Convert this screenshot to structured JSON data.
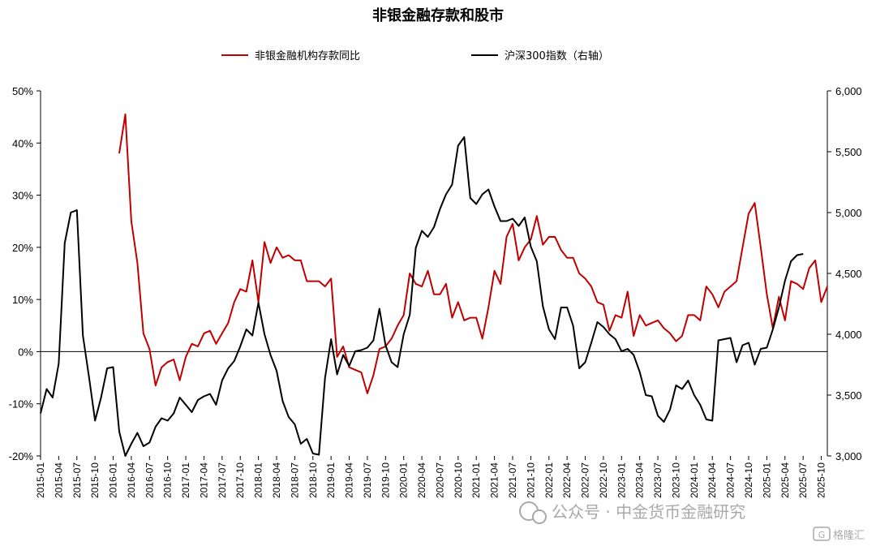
{
  "chart_data": {
    "type": "line",
    "title": "非银金融存款和股市",
    "legend_position": "top",
    "grid": false,
    "left_axis": {
      "min": -20,
      "max": 50,
      "step": 10,
      "format": "percent",
      "tick_labels": [
        "-20%",
        "-10%",
        "0%",
        "10%",
        "20%",
        "30%",
        "40%",
        "50%"
      ]
    },
    "right_axis": {
      "min": 3000,
      "max": 6000,
      "step": 500,
      "tick_labels": [
        "3,000",
        "3,500",
        "4,000",
        "4,500",
        "5,000",
        "5,500",
        "6,000"
      ]
    },
    "x_start": "2015-01",
    "x_end": "2025-11",
    "x_tick_labels": [
      "2015-01",
      "2015-04",
      "2015-07",
      "2015-10",
      "2016-01",
      "2016-04",
      "2016-07",
      "2016-10",
      "2017-01",
      "2017-04",
      "2017-07",
      "2017-10",
      "2018-01",
      "2018-04",
      "2018-07",
      "2018-10",
      "2019-01",
      "2019-04",
      "2019-07",
      "2019-10",
      "2020-01",
      "2020-04",
      "2020-07",
      "2020-10",
      "2021-01",
      "2021-04",
      "2021-07",
      "2021-10",
      "2022-01",
      "2022-04",
      "2022-07",
      "2022-10",
      "2023-01",
      "2023-04",
      "2023-07",
      "2023-10",
      "2024-01",
      "2024-04",
      "2024-07",
      "2024-10",
      "2025-01",
      "2025-04",
      "2025-07",
      "2025-10"
    ],
    "series": [
      {
        "name": "非银金融机构存款同比",
        "axis": "left",
        "color": "#c00000",
        "start": "2016-02",
        "values": [
          38,
          45.5,
          25,
          17,
          3.5,
          0.5,
          -6.5,
          -3,
          -2,
          -1.5,
          -5.5,
          -1,
          1.5,
          1,
          3.5,
          4,
          1.5,
          3.5,
          5.5,
          9.5,
          12,
          11.5,
          17.5,
          9.5,
          21,
          17,
          20,
          18,
          18.5,
          17.5,
          17.5,
          13.5,
          13.5,
          13.5,
          12.5,
          14,
          -1,
          1,
          -3,
          -3.5,
          -4,
          -8,
          -4.5,
          0.5,
          1,
          2.5,
          5,
          7,
          15,
          13,
          12.5,
          15.5,
          11,
          11,
          13,
          6.5,
          9.5,
          6,
          6.5,
          6.5,
          2.5,
          8.5,
          15.5,
          13,
          22,
          24.5,
          17.5,
          20,
          21.5,
          26,
          20.5,
          22,
          22,
          19.5,
          18,
          18,
          15,
          14,
          12.5,
          9.5,
          9,
          4,
          7,
          6.5,
          11.5,
          3,
          7,
          5,
          5.5,
          6,
          4.5,
          3.5,
          2,
          3,
          7,
          7,
          6,
          12.5,
          11,
          8.5,
          11.5,
          12.5,
          13.5,
          20,
          26.5,
          28.5,
          20,
          11,
          4.5,
          10.5,
          6,
          13.5,
          13,
          12,
          16,
          17.5,
          9.5,
          12.5
        ]
      },
      {
        "name": "沪深300指数（右轴）",
        "axis": "right",
        "color": "#000000",
        "start": "2015-01",
        "values": [
          3350,
          3550,
          3480,
          3760,
          4750,
          5000,
          5020,
          3990,
          3650,
          3290,
          3480,
          3720,
          3730,
          3200,
          3000,
          3100,
          3190,
          3080,
          3110,
          3240,
          3310,
          3290,
          3350,
          3480,
          3420,
          3360,
          3460,
          3490,
          3510,
          3420,
          3620,
          3720,
          3780,
          3900,
          4040,
          3990,
          4260,
          4000,
          3830,
          3700,
          3450,
          3320,
          3260,
          3100,
          3140,
          3020,
          3010,
          3640,
          3960,
          3670,
          3830,
          3740,
          3860,
          3870,
          3890,
          3950,
          4210,
          3910,
          3770,
          3730,
          4000,
          4160,
          4710,
          4850,
          4800,
          4880,
          5030,
          5150,
          5230,
          5550,
          5620,
          5120,
          5070,
          5150,
          5190,
          5050,
          4930,
          4930,
          4950,
          4890,
          4960,
          4720,
          4600,
          4230,
          4040,
          3960,
          4220,
          4220,
          4070,
          3720,
          3770,
          3930,
          4100,
          4060,
          4000,
          3960,
          3860,
          3880,
          3830,
          3690,
          3500,
          3490,
          3330,
          3280,
          3380,
          3580,
          3550,
          3620,
          3500,
          3420,
          3300,
          3290,
          3950,
          3960,
          3970,
          3770,
          3910,
          3930,
          3750,
          3880,
          3890,
          4040,
          4220,
          4440,
          4600,
          4650,
          4660
        ]
      }
    ]
  },
  "watermark": {
    "text": "公众号 · 中金货币金融研究",
    "badge": "格隆汇"
  }
}
